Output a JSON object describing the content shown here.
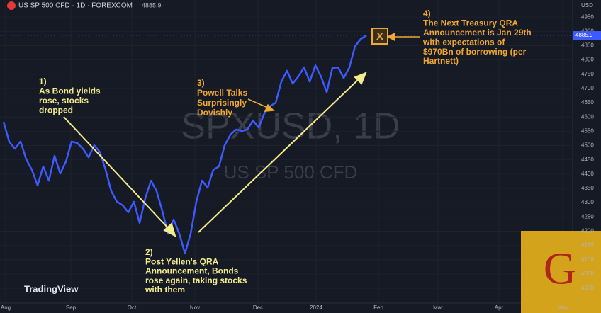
{
  "chart_data": {
    "type": "line",
    "header": {
      "symbol": "US SP 500 CFD · 1D · FOREXCOM",
      "price": "4885.9"
    },
    "currency": "USD",
    "watermark": [
      "SPXUSD, 1D",
      "US SP 500 CFD"
    ],
    "brand": "TradingView",
    "logo": "G",
    "series": [
      {
        "name": "SPXUSD",
        "color": "#3d5afe",
        "values": [
          4583,
          4514,
          4489,
          4514,
          4452,
          4415,
          4360,
          4427,
          4377,
          4464,
          4402,
          4444,
          4514,
          4509,
          4489,
          4459,
          4501,
          4477,
          4415,
          4340,
          4303,
          4291,
          4266,
          4303,
          4229,
          4315,
          4377,
          4340,
          4271,
          4191,
          4241,
          4191,
          4122,
          4191,
          4303,
          4377,
          4353,
          4415,
          4427,
          4501,
          4538,
          4556,
          4551,
          4556,
          4588,
          4563,
          4613,
          4638,
          4650,
          4724,
          4762,
          4717,
          4742,
          4774,
          4724,
          4781,
          4742,
          4687,
          4772,
          4774,
          4737,
          4774,
          4848,
          4873,
          4885.9
        ]
      }
    ],
    "last_value_label": "4885.9",
    "xlim": [
      -0.625,
      100.375
    ],
    "xticks": [
      {
        "value": 0.375,
        "label": "Aug"
      },
      {
        "value": 11.875,
        "label": "Sep"
      },
      {
        "value": 22.625,
        "label": "Oct"
      },
      {
        "value": 33.75,
        "label": "Nov"
      },
      {
        "value": 44.875,
        "label": "Dec"
      },
      {
        "value": 55.125,
        "label": "2024"
      },
      {
        "value": 66.125,
        "label": "Feb"
      },
      {
        "value": 76.625,
        "label": "Mar"
      },
      {
        "value": 87.375,
        "label": "Apr"
      },
      {
        "value": 98.625,
        "label": "May"
      }
    ],
    "ylim": [
      3948,
      5010
    ],
    "yticks": [
      4000,
      4050,
      4100,
      4150,
      4200,
      4250,
      4300,
      4350,
      4400,
      4450,
      4500,
      4550,
      4600,
      4650,
      4700,
      4750,
      4800,
      4850,
      4900,
      4950
    ],
    "annotations": [
      {
        "lines": [
          "1)",
          "As Bond yields",
          "rose, stocks",
          "dropped"
        ],
        "color": "#f3ec8a"
      },
      {
        "lines": [
          "2)",
          "Post Yellen's QRA",
          "Announcement, Bonds",
          "rose again, taking stocks",
          "with them"
        ],
        "color": "#f3ec8a"
      },
      {
        "lines": [
          "3)",
          "Powell Talks",
          "Surprisingly",
          "Dovishly"
        ],
        "color": "#f0a830"
      },
      {
        "lines": [
          "4)",
          "The Next Treasury QRA",
          "Announcement is Jan 29th",
          "with expectations of",
          "$970Bn of borrowing (per",
          "Hartnett)"
        ],
        "color": "#f0a830"
      }
    ],
    "marker": "X"
  }
}
